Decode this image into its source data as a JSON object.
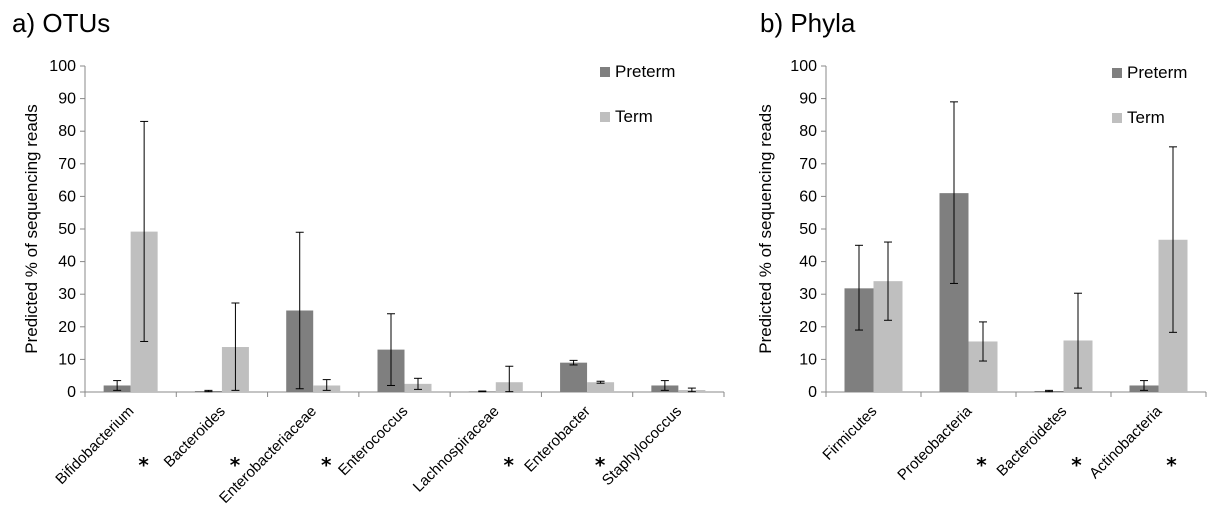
{
  "colors": {
    "preterm": "#7f7f7f",
    "term": "#bfbfbf"
  },
  "chart_data": [
    {
      "type": "bar",
      "title": "a) OTUs",
      "xlabel": "",
      "ylabel": "Predicted % of sequencing reads",
      "ylim": [
        0,
        100
      ],
      "yticks": [
        0,
        10,
        20,
        30,
        40,
        50,
        60,
        70,
        80,
        90,
        100
      ],
      "grid": false,
      "legend_position": "top-right",
      "categories": [
        "Bifidobacterium",
        "Bacteroides",
        "Enterobacteriaceae",
        "Enterococcus",
        "Lachnospiraceae",
        "Enterobacter",
        "Staphylococcus"
      ],
      "significant": [
        "*",
        "*",
        "*",
        "",
        "*",
        "*",
        ""
      ],
      "series": [
        {
          "name": "Preterm",
          "values": [
            2,
            0.3,
            25,
            13,
            0.2,
            9,
            2
          ],
          "err_low": [
            0.5,
            0.1,
            1,
            2,
            0.1,
            8.3,
            0.5
          ],
          "err_high": [
            3.5,
            0.5,
            49,
            24,
            0.3,
            9.7,
            3.5
          ]
        },
        {
          "name": "Term",
          "values": [
            49.2,
            13.8,
            2,
            2.5,
            3,
            3,
            0.6
          ],
          "err_low": [
            15.5,
            0.5,
            0.5,
            0.8,
            0.1,
            2.7,
            0.1
          ],
          "err_high": [
            83,
            27.3,
            3.8,
            4.2,
            7.9,
            3.3,
            1.2
          ]
        }
      ]
    },
    {
      "type": "bar",
      "title": "b) Phyla",
      "xlabel": "",
      "ylabel": "Predicted % of sequencing reads",
      "ylim": [
        0,
        100
      ],
      "yticks": [
        0,
        10,
        20,
        30,
        40,
        50,
        60,
        70,
        80,
        90,
        100
      ],
      "grid": false,
      "legend_position": "top-right",
      "categories": [
        "Firmicutes",
        "Proteobacteria",
        "Bacteroidetes",
        "Actinobacteria"
      ],
      "significant": [
        "",
        "*",
        "*",
        "*"
      ],
      "series": [
        {
          "name": "Preterm",
          "values": [
            31.8,
            61,
            0.3,
            2
          ],
          "err_low": [
            19,
            33.3,
            0.1,
            0.5
          ],
          "err_high": [
            45,
            89,
            0.5,
            3.5
          ]
        },
        {
          "name": "Term",
          "values": [
            34,
            15.5,
            15.8,
            46.7
          ],
          "err_low": [
            22,
            9.5,
            1.2,
            18.3
          ],
          "err_high": [
            46,
            21.5,
            30.3,
            75.2
          ]
        }
      ]
    }
  ]
}
